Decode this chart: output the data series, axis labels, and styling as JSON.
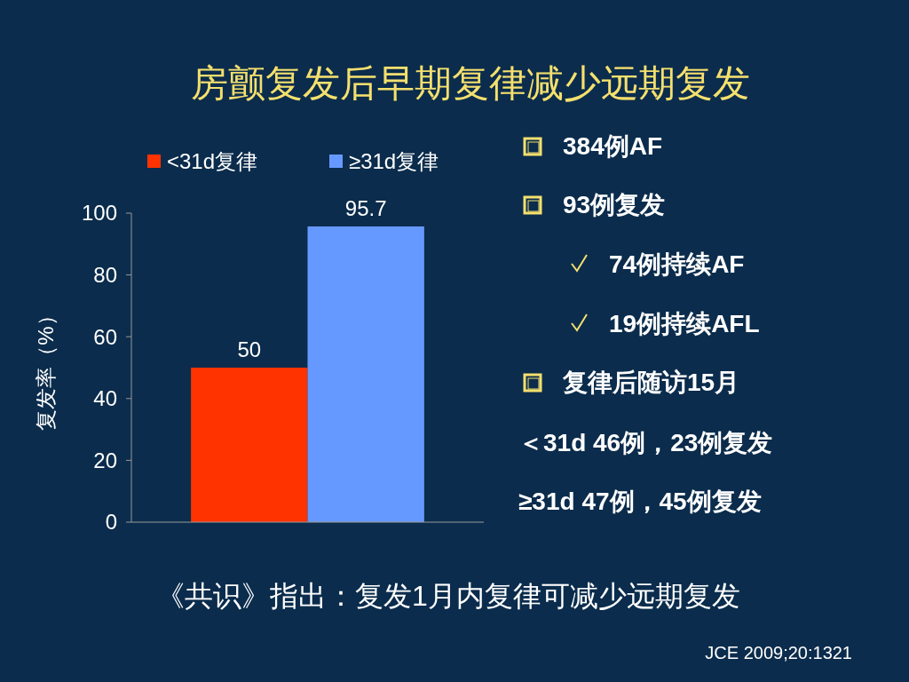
{
  "chart_data": {
    "type": "bar",
    "title": "房颤复发后早期复律减少远期复发",
    "ylabel": "复发率（%）",
    "categories": [
      null
    ],
    "series": [
      {
        "name": "<31d复律",
        "color": "#ff3300",
        "values": [
          50
        ]
      },
      {
        "name": "≥31d复律",
        "color": "#6699ff",
        "values": [
          95.7
        ]
      }
    ],
    "ylim": [
      0,
      100
    ],
    "yticks": [
      0,
      20,
      40,
      60,
      80,
      100
    ],
    "grid": false,
    "legend": "top",
    "data_labels": true,
    "annotations": [
      "384例AF",
      "93例复发",
      "74例持续AF",
      "19例持续AFL",
      "复律后随访15月",
      "＜31d 46例，23例复发",
      "≥31d 47例，45例复发",
      "《共识》指出：复发1月内复律可减少远期复发",
      "JCE 2009;20:1321"
    ]
  }
}
